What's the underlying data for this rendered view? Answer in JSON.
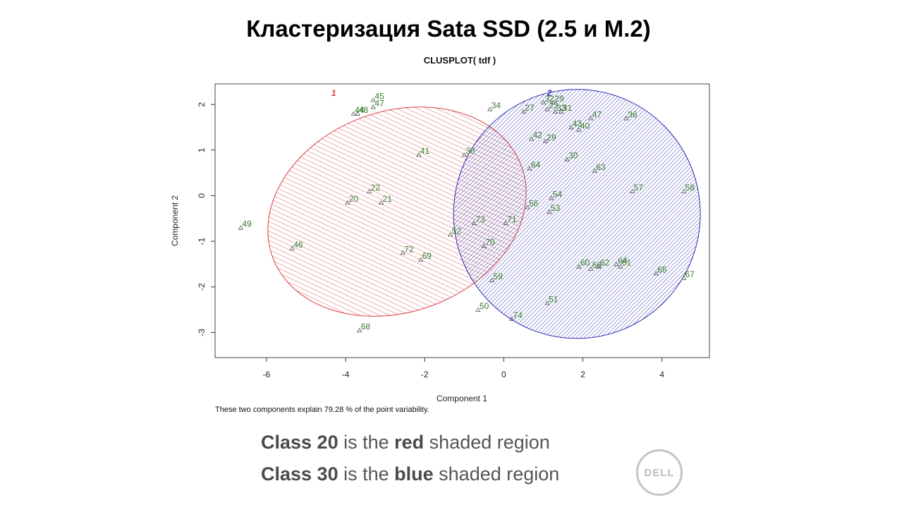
{
  "slide": {
    "title": "Кластеризация Sata SSD (2.5 и M.2)",
    "footnote": "These two components explain 79.28 % of the point variability.",
    "class_lines": [
      {
        "c1": "Class 20",
        "c2": " is the ",
        "c3": "red",
        "c4": " shaded region"
      },
      {
        "c1": "Class 30",
        "c2": " is the ",
        "c3": "blue",
        "c4": " shaded region"
      }
    ],
    "logo_text": "DELL"
  },
  "chart_data": {
    "type": "scatter",
    "title": "CLUSPLOT( tdf )",
    "xlabel": "Component 1",
    "ylabel": "Component 2",
    "xlim": [
      -7.3,
      5.2
    ],
    "ylim": [
      -3.55,
      2.45
    ],
    "xticks": [
      -6,
      -4,
      -2,
      0,
      2,
      4
    ],
    "yticks": [
      -3,
      -2,
      -1,
      0,
      1,
      2
    ],
    "colors": {
      "red": "#d94040",
      "blue": "#2a2ab0",
      "point": "#3a7a30",
      "axis": "#333333"
    },
    "clusters": [
      {
        "label": "1",
        "color": "#d94040",
        "center": [
          -2.7,
          -0.35
        ],
        "rx": 3.35,
        "ry": 2.2,
        "angle_deg": -20,
        "label_pos": [
          -4.3,
          2.25
        ]
      },
      {
        "label": "2",
        "color": "#2a2ab0",
        "center": [
          1.85,
          -0.4
        ],
        "rx": 3.12,
        "ry": 2.73,
        "angle_deg": 0,
        "label_pos": [
          1.15,
          2.25
        ]
      }
    ],
    "points": [
      {
        "id": "45",
        "x": -3.3,
        "y": 2.1
      },
      {
        "id": "47",
        "x": -3.3,
        "y": 1.95
      },
      {
        "id": "44",
        "x": -3.8,
        "y": 1.8
      },
      {
        "id": "48",
        "x": -3.7,
        "y": 1.8
      },
      {
        "id": "41",
        "x": -2.15,
        "y": 0.9
      },
      {
        "id": "22",
        "x": -3.4,
        "y": 0.1
      },
      {
        "id": "20",
        "x": -3.95,
        "y": -0.15
      },
      {
        "id": "21",
        "x": -3.1,
        "y": -0.15
      },
      {
        "id": "49",
        "x": -6.65,
        "y": -0.7
      },
      {
        "id": "46",
        "x": -5.35,
        "y": -1.15
      },
      {
        "id": "72",
        "x": -2.55,
        "y": -1.25
      },
      {
        "id": "69",
        "x": -2.1,
        "y": -1.4
      },
      {
        "id": "68",
        "x": -3.65,
        "y": -2.95
      },
      {
        "id": "38",
        "x": -1.0,
        "y": 0.9
      },
      {
        "id": "52",
        "x": -1.35,
        "y": -0.85
      },
      {
        "id": "73",
        "x": -0.75,
        "y": -0.6
      },
      {
        "id": "70",
        "x": -0.5,
        "y": -1.1
      },
      {
        "id": "71",
        "x": 0.05,
        "y": -0.6
      },
      {
        "id": "59",
        "x": -0.3,
        "y": -1.85
      },
      {
        "id": "50",
        "x": -0.65,
        "y": -2.5
      },
      {
        "id": "74",
        "x": 0.2,
        "y": -2.7
      },
      {
        "id": "34",
        "x": -0.35,
        "y": 1.9
      },
      {
        "id": "27",
        "x": 0.5,
        "y": 1.85
      },
      {
        "id": "32",
        "x": 1.0,
        "y": 2.05
      },
      {
        "id": "29",
        "x": 1.25,
        "y": 2.05
      },
      {
        "id": "23",
        "x": 1.1,
        "y": 1.9
      },
      {
        "id": "33",
        "x": 1.3,
        "y": 1.85
      },
      {
        "id": "31",
        "x": 1.45,
        "y": 1.85
      },
      {
        "id": "47b",
        "label": "47",
        "x": 2.2,
        "y": 1.7
      },
      {
        "id": "36",
        "x": 3.1,
        "y": 1.7
      },
      {
        "id": "43",
        "x": 1.7,
        "y": 1.5
      },
      {
        "id": "40",
        "x": 1.9,
        "y": 1.45
      },
      {
        "id": "42",
        "x": 0.7,
        "y": 1.25
      },
      {
        "id": "29b",
        "label": "29",
        "x": 1.05,
        "y": 1.2
      },
      {
        "id": "30",
        "x": 1.6,
        "y": 0.8
      },
      {
        "id": "64",
        "x": 0.65,
        "y": 0.6
      },
      {
        "id": "63",
        "x": 2.3,
        "y": 0.55
      },
      {
        "id": "57",
        "x": 3.25,
        "y": 0.1
      },
      {
        "id": "58",
        "x": 4.55,
        "y": 0.1
      },
      {
        "id": "54",
        "x": 1.2,
        "y": -0.05
      },
      {
        "id": "56",
        "x": 0.6,
        "y": -0.25
      },
      {
        "id": "53",
        "x": 1.15,
        "y": -0.35
      },
      {
        "id": "60",
        "x": 1.9,
        "y": -1.55
      },
      {
        "id": "66",
        "x": 2.2,
        "y": -1.6
      },
      {
        "id": "62",
        "x": 2.4,
        "y": -1.55
      },
      {
        "id": "64b",
        "label": "64",
        "x": 2.85,
        "y": -1.5
      },
      {
        "id": "61",
        "x": 2.95,
        "y": -1.55
      },
      {
        "id": "65",
        "x": 3.85,
        "y": -1.7
      },
      {
        "id": "67",
        "x": 4.55,
        "y": -1.8
      },
      {
        "id": "51",
        "x": 1.1,
        "y": -2.35
      }
    ]
  }
}
